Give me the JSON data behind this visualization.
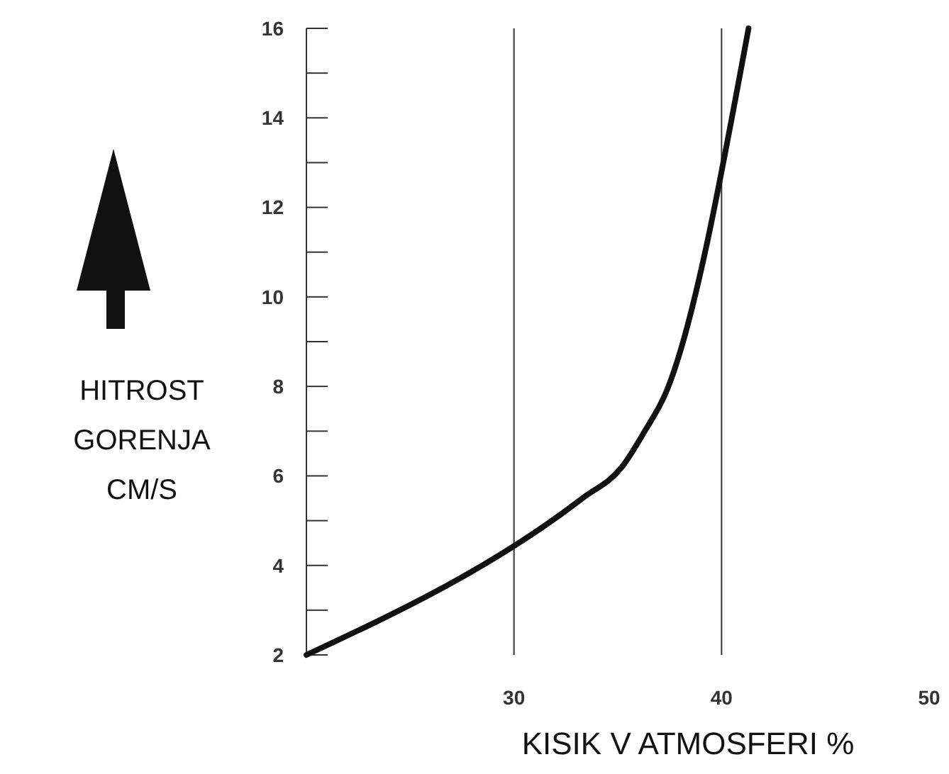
{
  "chart_data": {
    "type": "line",
    "xlabel": "KISIK V ATMOSFERI %",
    "ylabel": "HITROST GORENJA CM/S",
    "x": [
      20,
      33.3,
      35.2,
      36.3,
      37.3,
      41.3
    ],
    "series": [
      {
        "color": "#111111",
        "values": [
          2,
          5.5,
          6.2,
          7.0,
          7.84,
          16
        ]
      }
    ],
    "xlim": [
      20,
      50
    ],
    "xticks": [
      30,
      40,
      50
    ],
    "ylim": [
      2,
      16
    ],
    "yticks": [
      2,
      {
        "value": 3,
        "label": null
      },
      4,
      {
        "value": 5,
        "label": null
      },
      6,
      {
        "value": 7,
        "label": null
      },
      8,
      {
        "value": 9,
        "label": null
      },
      10,
      {
        "value": 11,
        "label": null
      },
      12,
      {
        "value": 13,
        "label": null
      },
      14,
      {
        "value": 15,
        "label": null
      },
      16
    ],
    "grid": "x",
    "marker": "none",
    "line_style": "solid"
  }
}
